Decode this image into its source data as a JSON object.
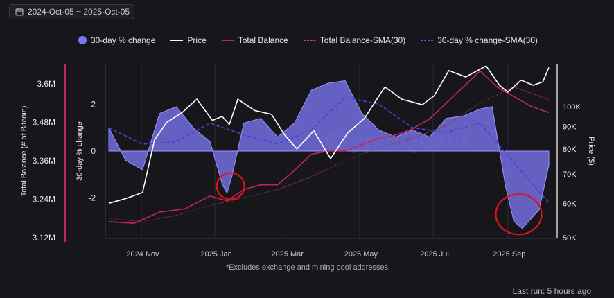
{
  "date_range": "2024-Oct-05 ~ 2025-Oct-05",
  "footnote": "*Excludes exchange and mining pool addresses",
  "last_run": "Last run: 5 hours ago",
  "watermark": "CryptoQuant",
  "colors": {
    "change": "#7b76f2",
    "price": "#ffffff",
    "balance": "#c2255c",
    "balance_sma": "#9e2a55",
    "change_sma": "#4b3fd6",
    "highlight": "#e0121a",
    "background": "#17171b"
  },
  "icons": {
    "date_range": "calendar-icon"
  },
  "chart_data": {
    "type": "line",
    "legend": [
      "30-day % change",
      "Price",
      "Total Balance",
      "Total Balance-SMA(30)",
      "30-day % change-SMA(30)"
    ],
    "x_range": [
      "2024-10-05",
      "2025-10-05"
    ],
    "x_ticks": [
      {
        "label": "2024 Nov",
        "date": "2024-11-01"
      },
      {
        "label": "2025 Jan",
        "date": "2025-01-01"
      },
      {
        "label": "2025 Mar",
        "date": "2025-03-01"
      },
      {
        "label": "2025 May",
        "date": "2025-05-01"
      },
      {
        "label": "2025 Jul",
        "date": "2025-07-01"
      },
      {
        "label": "2025 Sep",
        "date": "2025-09-01"
      }
    ],
    "axes": {
      "balance": {
        "label": "Total Balance (# of Bitcoin)",
        "range": [
          3.12,
          3.66
        ],
        "unit": "M",
        "ticks": [
          {
            "v": 3.12,
            "label": "3.12M"
          },
          {
            "v": 3.24,
            "label": "3.24M"
          },
          {
            "v": 3.36,
            "label": "3.36M"
          },
          {
            "v": 3.48,
            "label": "3.48M"
          },
          {
            "v": 3.6,
            "label": "3.6M"
          }
        ]
      },
      "change": {
        "label": "30-day % change",
        "range": [
          -3.7,
          3.7
        ],
        "ticks": [
          {
            "v": 2,
            "label": "2"
          },
          {
            "v": 0,
            "label": "0"
          },
          {
            "v": -2,
            "label": "-2"
          }
        ]
      },
      "price": {
        "label": "Price ($)",
        "scale": "log",
        "range": [
          50000,
          125000
        ],
        "ticks": [
          {
            "v": 50000,
            "label": "50K"
          },
          {
            "v": 60000,
            "label": "60K"
          },
          {
            "v": 70000,
            "label": "70K"
          },
          {
            "v": 80000,
            "label": "80K"
          },
          {
            "v": 90000,
            "label": "90K"
          },
          {
            "v": 100000,
            "label": "100K"
          }
        ]
      }
    },
    "series": [
      {
        "name": "30-day % change",
        "style": "area",
        "axis": "change",
        "x": [
          "2024-10-05",
          "2024-10-19",
          "2024-11-02",
          "2024-11-16",
          "2024-11-30",
          "2024-12-14",
          "2024-12-28",
          "2025-01-07",
          "2025-01-11",
          "2025-01-15",
          "2025-01-25",
          "2025-02-08",
          "2025-02-22",
          "2025-03-08",
          "2025-03-22",
          "2025-04-05",
          "2025-04-19",
          "2025-05-03",
          "2025-05-17",
          "2025-05-31",
          "2025-06-14",
          "2025-06-28",
          "2025-07-12",
          "2025-07-26",
          "2025-08-09",
          "2025-08-19",
          "2025-08-30",
          "2025-09-06",
          "2025-09-13",
          "2025-09-20",
          "2025-09-27",
          "2025-10-05"
        ],
        "values": [
          1.0,
          -0.4,
          -0.8,
          1.6,
          1.9,
          1.0,
          0.4,
          -1.4,
          -1.8,
          -1.1,
          1.2,
          1.4,
          0.6,
          1.2,
          2.6,
          2.9,
          3.0,
          1.6,
          0.9,
          0.6,
          0.9,
          0.6,
          1.4,
          1.5,
          1.8,
          1.9,
          -1.5,
          -3.0,
          -3.3,
          -2.9,
          -2.5,
          -0.6
        ]
      },
      {
        "name": "Price",
        "style": "line",
        "axis": "price",
        "x": [
          "2024-10-05",
          "2024-10-19",
          "2024-11-02",
          "2024-11-06",
          "2024-11-12",
          "2024-11-22",
          "2024-12-05",
          "2024-12-17",
          "2024-12-30",
          "2025-01-07",
          "2025-01-13",
          "2025-01-20",
          "2025-02-03",
          "2025-02-17",
          "2025-02-28",
          "2025-03-10",
          "2025-03-24",
          "2025-04-07",
          "2025-04-21",
          "2025-05-05",
          "2025-05-22",
          "2025-06-05",
          "2025-06-22",
          "2025-07-02",
          "2025-07-14",
          "2025-07-28",
          "2025-08-14",
          "2025-08-25",
          "2025-09-01",
          "2025-09-12",
          "2025-09-22",
          "2025-09-30",
          "2025-10-05"
        ],
        "values": [
          60000,
          61500,
          63500,
          71000,
          84000,
          92000,
          97000,
          104000,
          93000,
          95000,
          91000,
          104000,
          98000,
          96000,
          86000,
          80000,
          88000,
          76000,
          87000,
          94000,
          111000,
          104000,
          101000,
          106000,
          121000,
          117000,
          124000,
          112000,
          108000,
          115000,
          112000,
          114000,
          123000
        ]
      },
      {
        "name": "Total Balance",
        "style": "line",
        "axis": "balance",
        "x": [
          "2024-10-05",
          "2024-10-26",
          "2024-11-16",
          "2024-12-07",
          "2024-12-28",
          "2025-01-11",
          "2025-01-25",
          "2025-02-08",
          "2025-02-22",
          "2025-03-08",
          "2025-03-22",
          "2025-04-05",
          "2025-04-19",
          "2025-05-03",
          "2025-05-17",
          "2025-05-31",
          "2025-06-14",
          "2025-06-28",
          "2025-07-12",
          "2025-07-26",
          "2025-08-09",
          "2025-08-23",
          "2025-09-06",
          "2025-09-20",
          "2025-10-05"
        ],
        "values": [
          3.17,
          3.165,
          3.2,
          3.21,
          3.25,
          3.235,
          3.27,
          3.285,
          3.285,
          3.33,
          3.38,
          3.39,
          3.39,
          3.41,
          3.43,
          3.44,
          3.46,
          3.49,
          3.54,
          3.59,
          3.64,
          3.59,
          3.56,
          3.53,
          3.51
        ]
      },
      {
        "name": "Total Balance-SMA(30)",
        "style": "dotted",
        "axis": "balance",
        "x": [
          "2024-10-05",
          "2024-11-02",
          "2024-11-30",
          "2024-12-28",
          "2025-01-25",
          "2025-02-22",
          "2025-03-22",
          "2025-04-19",
          "2025-05-17",
          "2025-06-14",
          "2025-07-12",
          "2025-08-09",
          "2025-09-06",
          "2025-10-05"
        ],
        "values": [
          3.18,
          3.17,
          3.19,
          3.22,
          3.245,
          3.27,
          3.31,
          3.36,
          3.4,
          3.43,
          3.47,
          3.54,
          3.59,
          3.55
        ]
      },
      {
        "name": "30-day % change-SMA(30)",
        "style": "dashed",
        "axis": "change",
        "x": [
          "2024-10-05",
          "2024-11-02",
          "2024-11-30",
          "2024-12-28",
          "2025-01-25",
          "2025-02-22",
          "2025-03-22",
          "2025-04-19",
          "2025-05-17",
          "2025-06-14",
          "2025-07-12",
          "2025-08-09",
          "2025-09-06",
          "2025-10-05"
        ],
        "values": [
          1.0,
          0.3,
          0.4,
          1.2,
          0.7,
          0.3,
          0.9,
          2.3,
          2.0,
          1.0,
          0.8,
          1.2,
          -0.5,
          -2.2
        ]
      }
    ],
    "annotations": [
      {
        "type": "circle",
        "date": "2025-01-14",
        "value": -1.5,
        "axis": "change",
        "note": "red circle highlighting January dip"
      },
      {
        "type": "circle",
        "date": "2025-09-10",
        "value": -2.7,
        "axis": "change",
        "note": "red circle highlighting September dip"
      }
    ]
  }
}
